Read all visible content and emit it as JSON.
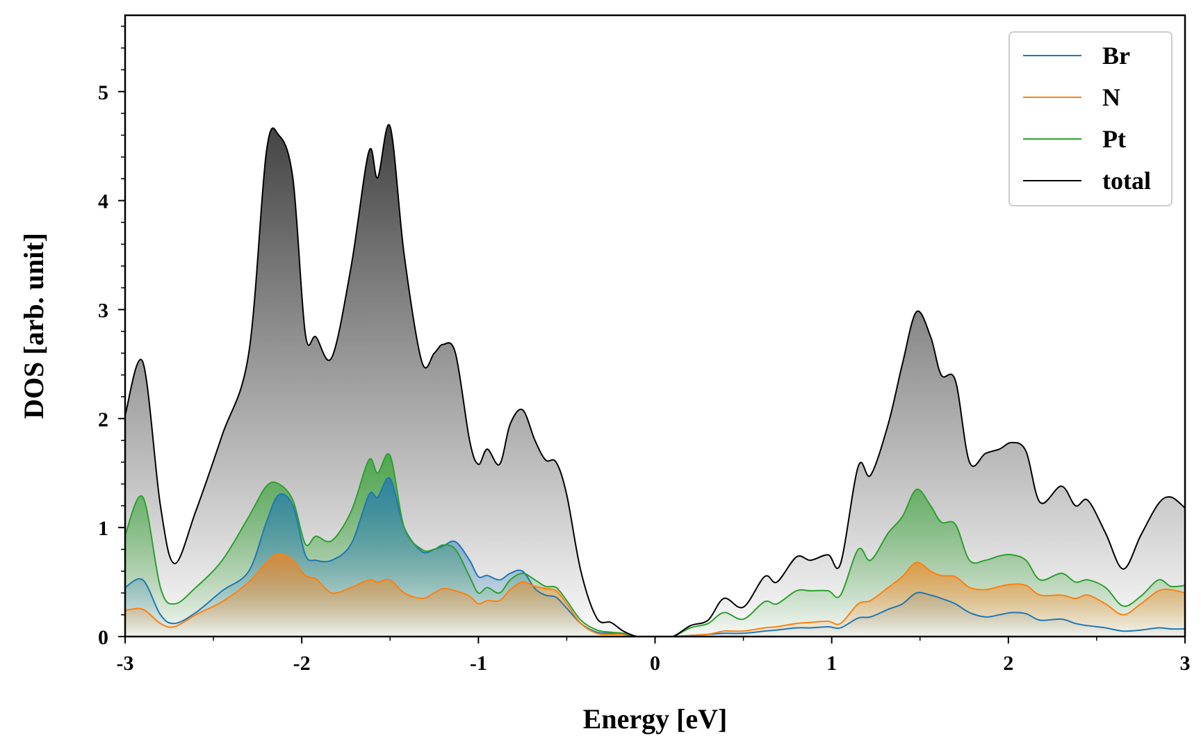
{
  "chart_data": {
    "type": "area",
    "title": "",
    "xlabel": "Energy [eV]",
    "ylabel": "DOS [arb. unit]",
    "xlim": [
      -3,
      3
    ],
    "ylim": [
      0,
      5.7
    ],
    "xticks": [
      -3,
      -2,
      -1,
      0,
      1,
      2,
      3
    ],
    "xtick_labels": [
      "-3",
      "-2",
      "-1",
      "0",
      "1",
      "2",
      "3"
    ],
    "yticks": [
      0,
      1,
      2,
      3,
      4,
      5
    ],
    "ytick_labels": [
      "0",
      "1",
      "2",
      "3",
      "4",
      "5"
    ],
    "grid": false,
    "legend_position": "top-right",
    "x": [
      -3.0,
      -2.9,
      -2.8,
      -2.72,
      -2.6,
      -2.45,
      -2.3,
      -2.2,
      -2.13,
      -2.05,
      -1.98,
      -1.92,
      -1.83,
      -1.72,
      -1.62,
      -1.57,
      -1.5,
      -1.42,
      -1.32,
      -1.25,
      -1.2,
      -1.13,
      -1.05,
      -1.0,
      -0.95,
      -0.88,
      -0.82,
      -0.75,
      -0.68,
      -0.62,
      -0.56,
      -0.5,
      -0.42,
      -0.33,
      -0.25,
      -0.18,
      -0.1,
      0.0,
      0.1,
      0.2,
      0.3,
      0.39,
      0.5,
      0.62,
      0.69,
      0.8,
      0.88,
      0.98,
      1.05,
      1.15,
      1.22,
      1.32,
      1.4,
      1.48,
      1.56,
      1.62,
      1.7,
      1.78,
      1.87,
      1.95,
      2.02,
      2.1,
      2.18,
      2.3,
      2.38,
      2.45,
      2.55,
      2.65,
      2.75,
      2.85,
      2.92,
      3.0
    ],
    "series": [
      {
        "name": "Br",
        "color": "#1f77b4",
        "values": [
          0.45,
          0.52,
          0.2,
          0.12,
          0.22,
          0.42,
          0.6,
          1.05,
          1.3,
          1.2,
          0.75,
          0.7,
          0.7,
          0.85,
          1.3,
          1.28,
          1.45,
          1.0,
          0.78,
          0.8,
          0.83,
          0.87,
          0.7,
          0.55,
          0.56,
          0.52,
          0.58,
          0.6,
          0.44,
          0.38,
          0.36,
          0.26,
          0.12,
          0.04,
          0.03,
          0.02,
          0.0,
          0.0,
          0.0,
          0.01,
          0.02,
          0.03,
          0.03,
          0.05,
          0.06,
          0.08,
          0.08,
          0.09,
          0.08,
          0.17,
          0.18,
          0.25,
          0.3,
          0.4,
          0.38,
          0.35,
          0.3,
          0.22,
          0.18,
          0.2,
          0.22,
          0.21,
          0.15,
          0.16,
          0.12,
          0.1,
          0.08,
          0.05,
          0.06,
          0.08,
          0.07,
          0.07
        ]
      },
      {
        "name": "N",
        "color": "#ff7f0e",
        "values": [
          0.24,
          0.25,
          0.12,
          0.09,
          0.2,
          0.32,
          0.5,
          0.68,
          0.76,
          0.7,
          0.56,
          0.53,
          0.4,
          0.45,
          0.52,
          0.5,
          0.52,
          0.4,
          0.35,
          0.4,
          0.44,
          0.42,
          0.37,
          0.3,
          0.33,
          0.33,
          0.43,
          0.5,
          0.46,
          0.44,
          0.42,
          0.3,
          0.12,
          0.03,
          0.02,
          0.02,
          0.0,
          0.0,
          0.0,
          0.01,
          0.02,
          0.05,
          0.05,
          0.08,
          0.09,
          0.12,
          0.13,
          0.14,
          0.12,
          0.3,
          0.33,
          0.45,
          0.55,
          0.68,
          0.6,
          0.56,
          0.55,
          0.45,
          0.43,
          0.46,
          0.48,
          0.47,
          0.38,
          0.38,
          0.35,
          0.38,
          0.3,
          0.2,
          0.3,
          0.42,
          0.43,
          0.4
        ]
      },
      {
        "name": "Pt",
        "color": "#2ca02c",
        "values": [
          0.93,
          1.28,
          0.45,
          0.3,
          0.45,
          0.7,
          1.1,
          1.38,
          1.4,
          1.25,
          0.85,
          0.92,
          0.88,
          1.15,
          1.62,
          1.5,
          1.66,
          1.0,
          0.8,
          0.8,
          0.84,
          0.8,
          0.55,
          0.4,
          0.45,
          0.4,
          0.52,
          0.58,
          0.52,
          0.46,
          0.45,
          0.33,
          0.15,
          0.06,
          0.04,
          0.03,
          0.0,
          0.0,
          0.0,
          0.08,
          0.12,
          0.22,
          0.16,
          0.32,
          0.3,
          0.42,
          0.42,
          0.42,
          0.38,
          0.8,
          0.7,
          0.95,
          1.1,
          1.35,
          1.2,
          1.05,
          1.03,
          0.7,
          0.7,
          0.74,
          0.75,
          0.7,
          0.52,
          0.58,
          0.5,
          0.52,
          0.45,
          0.28,
          0.37,
          0.52,
          0.46,
          0.47
        ]
      },
      {
        "name": "total",
        "color": "#000000",
        "values": [
          2.03,
          2.52,
          1.2,
          0.67,
          1.15,
          1.85,
          2.6,
          4.45,
          4.6,
          4.2,
          2.78,
          2.75,
          2.56,
          3.4,
          4.45,
          4.21,
          4.68,
          3.5,
          2.52,
          2.6,
          2.68,
          2.6,
          1.8,
          1.58,
          1.72,
          1.58,
          1.95,
          2.08,
          1.8,
          1.62,
          1.6,
          1.3,
          0.6,
          0.17,
          0.13,
          0.05,
          0.0,
          0.0,
          0.0,
          0.1,
          0.15,
          0.35,
          0.27,
          0.55,
          0.5,
          0.73,
          0.7,
          0.75,
          0.67,
          1.56,
          1.48,
          1.95,
          2.5,
          2.98,
          2.75,
          2.4,
          2.35,
          1.6,
          1.68,
          1.72,
          1.78,
          1.7,
          1.23,
          1.38,
          1.2,
          1.25,
          0.95,
          0.62,
          0.93,
          1.22,
          1.28,
          1.18
        ]
      }
    ]
  }
}
